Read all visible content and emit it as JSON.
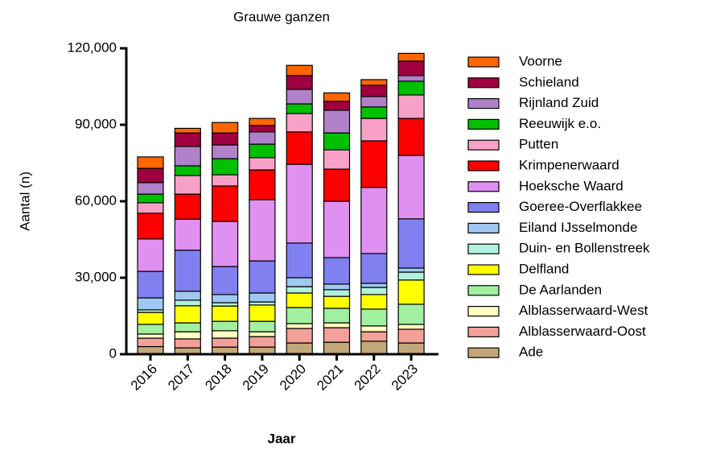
{
  "chart_data": {
    "type": "stacked_bar",
    "title": "Grauwe ganzen",
    "x_label": "Jaar",
    "y_label": "Aantal (n)",
    "categories": [
      "2016",
      "2017",
      "2018",
      "2019",
      "2020",
      "2021",
      "2022",
      "2023"
    ],
    "ylim": [
      0,
      120000
    ],
    "yticks": [
      0,
      {
        "value": 30000,
        "label": "30,000"
      },
      {
        "value": 60000,
        "label": "60,000"
      },
      {
        "value": 90000,
        "label": "90,000"
      },
      {
        "value": 120000,
        "label": "120,000"
      }
    ],
    "series": [
      {
        "name": "Ade",
        "color": "#c2a878",
        "values": [
          3000,
          2500,
          2800,
          2800,
          4400,
          4700,
          5100,
          4400
        ]
      },
      {
        "name": "Alblasserwaard-Oost",
        "color": "#f4a09a",
        "values": [
          3300,
          3500,
          3500,
          4100,
          5700,
          5700,
          3700,
          5400
        ]
      },
      {
        "name": "Alblasserwaard-West",
        "color": "#ffffc0",
        "values": [
          1600,
          2800,
          2900,
          1900,
          1900,
          1900,
          2300,
          1900
        ]
      },
      {
        "name": "De Aarlanden",
        "color": "#a0f0a0",
        "values": [
          3800,
          3500,
          3700,
          4100,
          6300,
          5700,
          6600,
          7900
        ]
      },
      {
        "name": "Delfland",
        "color": "#ffff00",
        "values": [
          4700,
          6700,
          6000,
          6400,
          5700,
          4700,
          5700,
          9500
        ]
      },
      {
        "name": "Duin- en Bollenstreek",
        "color": "#b0f0e0",
        "values": [
          1000,
          2200,
          1300,
          1200,
          2500,
          2600,
          2800,
          3100
        ]
      },
      {
        "name": "Eiland IJsselmonde",
        "color": "#a0c8f0",
        "values": [
          4700,
          3500,
          3200,
          3500,
          3500,
          2200,
          1600,
          1600
        ]
      },
      {
        "name": "Goeree-Overflakkee",
        "color": "#8080f0",
        "values": [
          10400,
          16100,
          11000,
          12600,
          13600,
          10400,
          11700,
          19300
        ]
      },
      {
        "name": "Hoeksche Waard",
        "color": "#e090f0",
        "values": [
          12700,
          12200,
          17700,
          24000,
          30900,
          22100,
          25900,
          24900
        ]
      },
      {
        "name": "Krimpenerwaard",
        "color": "#ff0000",
        "values": [
          10100,
          9800,
          13900,
          11700,
          12700,
          12600,
          18300,
          14500
        ]
      },
      {
        "name": "Putten",
        "color": "#f8a0c8",
        "values": [
          4100,
          7300,
          4400,
          4800,
          7200,
          7600,
          8800,
          9200
        ]
      },
      {
        "name": "Reeuwijk e.o.",
        "color": "#00c000",
        "values": [
          3400,
          3800,
          6300,
          5300,
          3800,
          6600,
          4500,
          5400
        ]
      },
      {
        "name": "Rijnland Zuid",
        "color": "#b080c8",
        "values": [
          4500,
          7600,
          5400,
          4800,
          5700,
          8900,
          4100,
          2200
        ]
      },
      {
        "name": "Schieland",
        "color": "#a00040",
        "values": [
          5600,
          5300,
          4700,
          2500,
          5400,
          3500,
          4400,
          5700
        ]
      },
      {
        "name": "Voorne",
        "color": "#ff6600",
        "values": [
          4500,
          1800,
          4100,
          2800,
          4000,
          3300,
          2200,
          3000
        ]
      }
    ]
  }
}
